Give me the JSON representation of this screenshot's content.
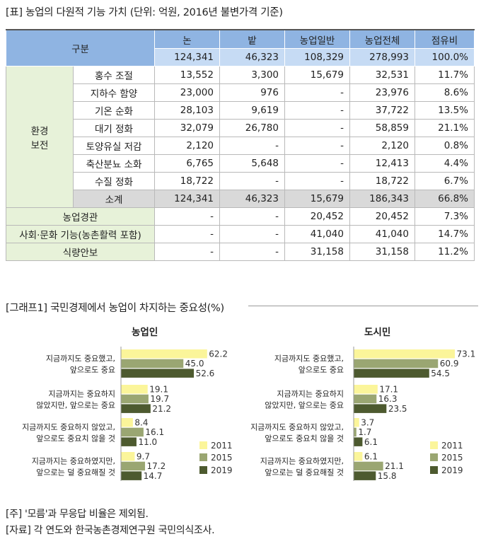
{
  "table": {
    "title": "[표] 농업의 다원적 기능 가치 (단위: 억원, 2016년 불변가격 기준)",
    "header_label": "구분",
    "columns": [
      "논",
      "밭",
      "농업일반",
      "농업전체",
      "점유비"
    ],
    "total_row": [
      "124,341",
      "46,323",
      "108,329",
      "278,993",
      "100.0%"
    ],
    "env_group_label_1": "환경",
    "env_group_label_2": "보전",
    "env_rows": [
      {
        "label": "홍수 조절",
        "values": [
          "13,552",
          "3,300",
          "15,679",
          "32,531",
          "11.7%"
        ]
      },
      {
        "label": "지하수 함양",
        "values": [
          "23,000",
          "976",
          "-",
          "23,976",
          "8.6%"
        ]
      },
      {
        "label": "기온 순화",
        "values": [
          "28,103",
          "9,619",
          "-",
          "37,722",
          "13.5%"
        ]
      },
      {
        "label": "대기 정화",
        "values": [
          "32,079",
          "26,780",
          "-",
          "58,859",
          "21.1%"
        ]
      },
      {
        "label": "토양유실 저감",
        "values": [
          "2,120",
          "-",
          "-",
          "2,120",
          "0.8%"
        ]
      },
      {
        "label": "축산분뇨 소화",
        "values": [
          "6,765",
          "5,648",
          "-",
          "12,413",
          "4.4%"
        ]
      },
      {
        "label": "수질 정화",
        "values": [
          "18,722",
          "-",
          "-",
          "18,722",
          "6.7%"
        ]
      }
    ],
    "subtotal": {
      "label": "소계",
      "values": [
        "124,341",
        "46,323",
        "15,679",
        "186,343",
        "66.8%"
      ]
    },
    "other_rows": [
      {
        "label": "농업경관",
        "values": [
          "-",
          "-",
          "20,452",
          "20,452",
          "7.3%"
        ]
      },
      {
        "label": "사회·문화 기능(농촌활력 포함)",
        "values": [
          "-",
          "-",
          "41,040",
          "41,040",
          "14.7%"
        ]
      },
      {
        "label": "식량안보",
        "values": [
          "-",
          "-",
          "31,158",
          "31,158",
          "11.2%"
        ]
      }
    ]
  },
  "graph": {
    "title": "[그래프1] 국민경제에서 농업이 차지하는 중요성(%)"
  },
  "chart_data": [
    {
      "type": "bar",
      "orientation": "horizontal",
      "title": "농업인",
      "categories": [
        [
          "지금까지도 중요했고,",
          "앞으로도 중요"
        ],
        [
          "지금까지는 중요하지",
          "않았지만, 앞으로는 중요"
        ],
        [
          "지금까지도 중요하지 않았고,",
          "앞으로도 중요치 않을 것"
        ],
        [
          "지금까지는 중요하였지만,",
          "앞으로는 덜 중요해질 것"
        ]
      ],
      "series": [
        {
          "name": "2011",
          "values": [
            62.2,
            19.1,
            8.4,
            9.7
          ],
          "color": "#fbf59a"
        },
        {
          "name": "2015",
          "values": [
            45.0,
            19.7,
            16.1,
            17.2
          ],
          "color": "#9aa672"
        },
        {
          "name": "2019",
          "values": [
            52.6,
            21.2,
            11.0,
            14.7
          ],
          "color": "#4d5a2f"
        }
      ],
      "labels": [
        [
          "62.2",
          "45.0",
          "52.6"
        ],
        [
          "19.1",
          "19.7",
          "21.2"
        ],
        [
          "8.4",
          "16.1",
          "11.0"
        ],
        [
          "9.7",
          "17.2",
          "14.7"
        ]
      ],
      "xlim": [
        0,
        75
      ],
      "grid": false,
      "legend": "bottom-right"
    },
    {
      "type": "bar",
      "orientation": "horizontal",
      "title": "도시민",
      "categories": [
        [
          "지금까지도 중요했고,",
          "앞으로도 중요"
        ],
        [
          "지금까지는 중요하지",
          "않았지만, 앞으로는 중요"
        ],
        [
          "지금까지도 중요하지 않았고,",
          "앞으로도 중요치 않을 것"
        ],
        [
          "지금까지는 중요하였지만,",
          "앞으로는 덜 중요해질 것"
        ]
      ],
      "series": [
        {
          "name": "2011",
          "values": [
            73.1,
            17.1,
            3.7,
            6.1
          ],
          "color": "#fbf59a"
        },
        {
          "name": "2015",
          "values": [
            60.9,
            16.3,
            1.7,
            21.1
          ],
          "color": "#9aa672"
        },
        {
          "name": "2019",
          "values": [
            54.5,
            23.5,
            6.1,
            15.8
          ],
          "color": "#4d5a2f"
        }
      ],
      "labels": [
        [
          "73.1",
          "60.9",
          "54.5"
        ],
        [
          "17.1",
          "16.3",
          "23.5"
        ],
        [
          "3.7",
          "1.7",
          "6.1"
        ],
        [
          "6.1",
          "21.1",
          "15.8"
        ]
      ],
      "xlim": [
        0,
        75
      ],
      "grid": false,
      "legend": "bottom-right"
    }
  ],
  "notes": {
    "note1": "[주] '모름'과 무응답 비율은 제외됨.",
    "note2": "[자료] 각 연도와 한국농촌경제연구원 국민의식조사."
  }
}
